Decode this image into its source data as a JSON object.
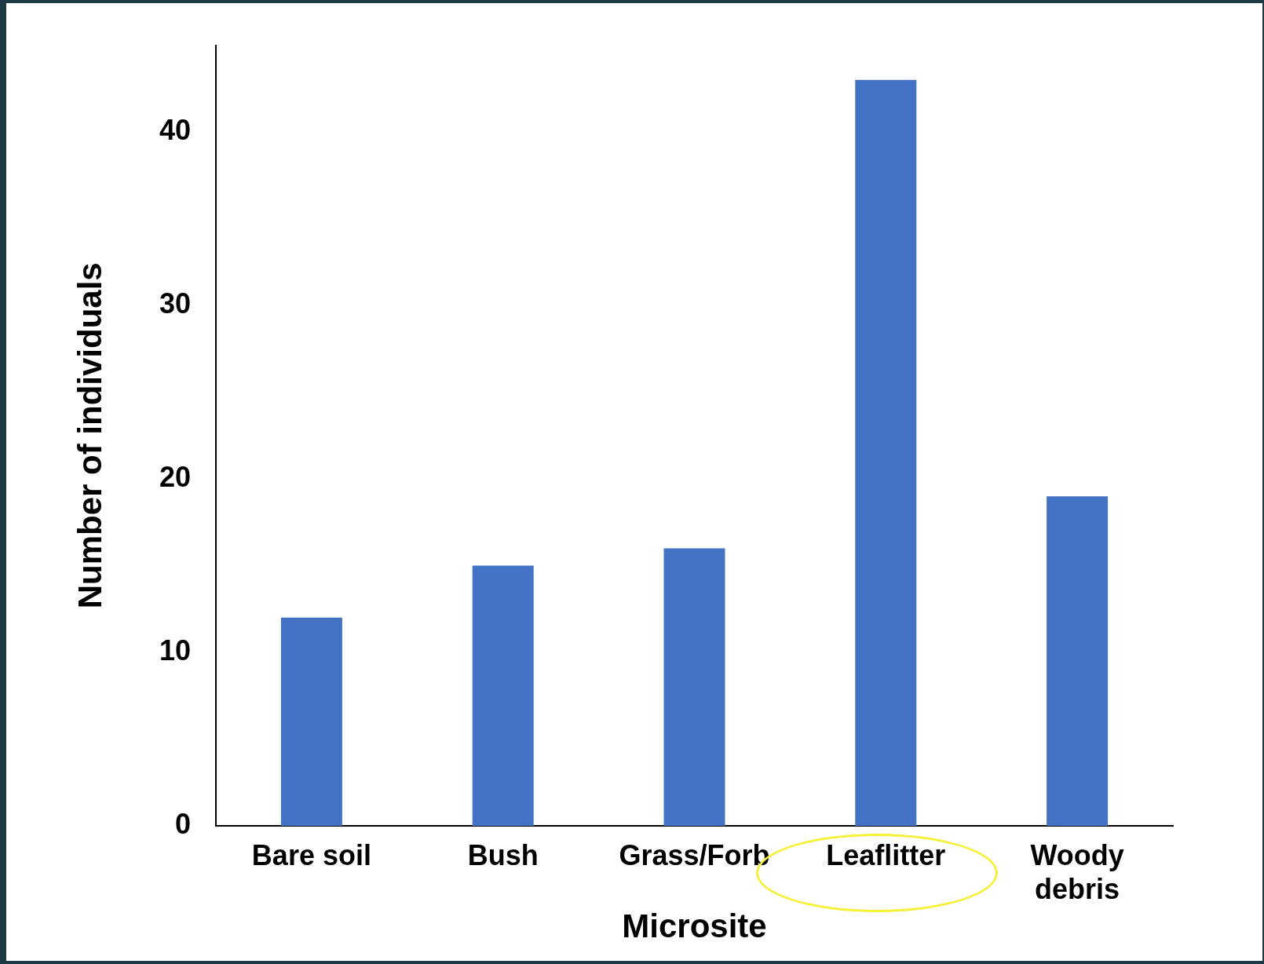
{
  "chart_data": {
    "type": "bar",
    "xlabel": "Microsite",
    "ylabel": "Number of individuals",
    "categories": [
      "Bare soil",
      "Bush",
      "Grass/Forb",
      "Leaflitter",
      "Woody debris"
    ],
    "values": [
      12,
      15,
      16,
      43,
      19
    ],
    "color": "#4472c4",
    "ylim": [
      0,
      45
    ],
    "yticks": [
      0,
      10,
      20,
      30,
      40
    ],
    "grid": false,
    "legend": false
  }
}
